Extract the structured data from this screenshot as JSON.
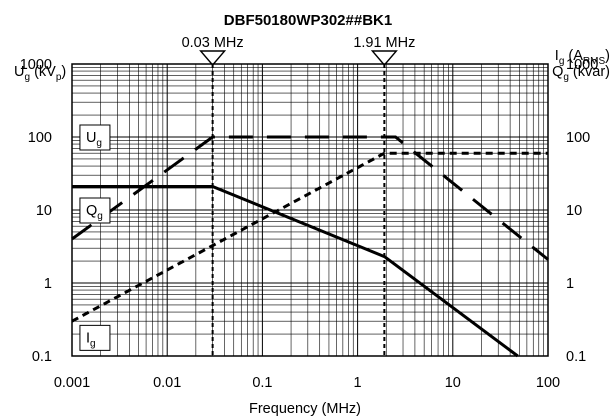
{
  "chart_data": {
    "type": "line",
    "title": "DBF50180WP302##BK1",
    "xlabel": "Frequency (MHz)",
    "x_scale": "log",
    "y_scale": "log",
    "xlim": [
      0.001,
      100
    ],
    "ylim": [
      0.1,
      1000
    ],
    "x_ticks": [
      "0.001",
      "0.01",
      "0.1",
      "1",
      "10",
      "100"
    ],
    "y_ticks": [
      "1000",
      "100",
      "10",
      "1",
      "0.1"
    ],
    "left_axis_label": {
      "main": "U",
      "sub": "g",
      "rest": " (kV",
      "sub2": "p",
      "end": ")"
    },
    "right_axis_label_1": {
      "main": "I",
      "sub": "g",
      "rest": " (A",
      "sub2": "RMS",
      "end": ")"
    },
    "right_axis_label_2": {
      "main": "Q",
      "sub": "g",
      "rest": " (kvar)"
    },
    "grid": true,
    "markers": [
      {
        "x": 0.03,
        "label": "0.03 MHz"
      },
      {
        "x": 1.91,
        "label": "1.91 MHz"
      }
    ],
    "series": [
      {
        "name": "U",
        "sub": "g",
        "style": "solid",
        "label_at": {
          "x": 0.0017,
          "y": 100
        },
        "x": [
          0.001,
          0.03,
          1.91,
          48
        ],
        "y": [
          21,
          21,
          2.3,
          0.1
        ]
      },
      {
        "name": "Q",
        "sub": "g",
        "style": "longdash",
        "label_at": {
          "x": 0.0017,
          "y": 10
        },
        "x": [
          0.001,
          0.03,
          2.5,
          100
        ],
        "y": [
          4,
          100,
          100,
          2.1
        ]
      },
      {
        "name": "I",
        "sub": "g",
        "style": "shortdash",
        "label_at": {
          "x": 0.0017,
          "y": 0.18
        },
        "x": [
          0.001,
          1.91,
          2.5,
          100
        ],
        "y": [
          0.3,
          60,
          60,
          60
        ]
      }
    ]
  }
}
